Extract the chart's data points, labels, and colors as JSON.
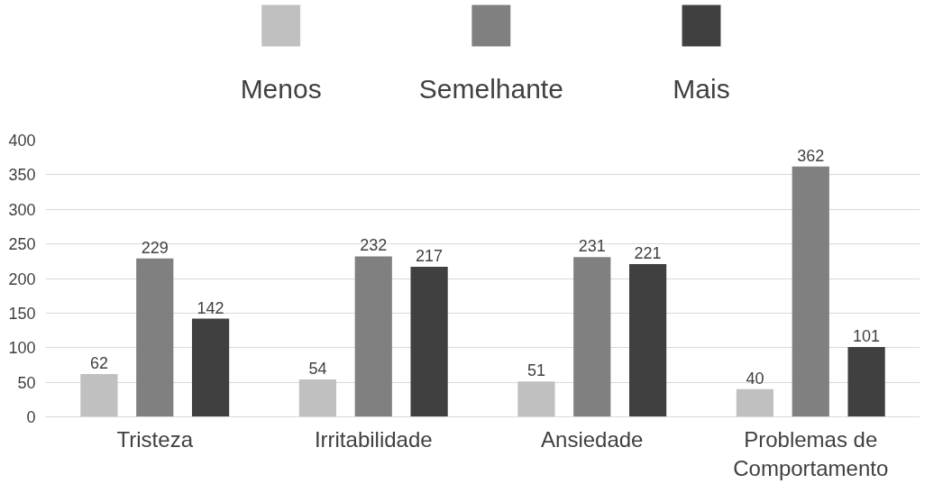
{
  "chart_data": {
    "type": "bar",
    "categories": [
      "Tristeza",
      "Irritabilidade",
      "Ansiedade",
      "Problemas de Comportamento"
    ],
    "series": [
      {
        "name": "Menos",
        "color": "#c0c0c0",
        "values": [
          62,
          54,
          51,
          40
        ]
      },
      {
        "name": "Semelhante",
        "color": "#808080",
        "values": [
          229,
          232,
          231,
          362
        ]
      },
      {
        "name": "Mais",
        "color": "#404040",
        "values": [
          142,
          217,
          221,
          101
        ]
      }
    ],
    "ylim": [
      0,
      400
    ],
    "yticks": [
      0,
      50,
      100,
      150,
      200,
      250,
      300,
      350,
      400
    ],
    "grid": "y",
    "legend": "top",
    "data_labels": true
  }
}
